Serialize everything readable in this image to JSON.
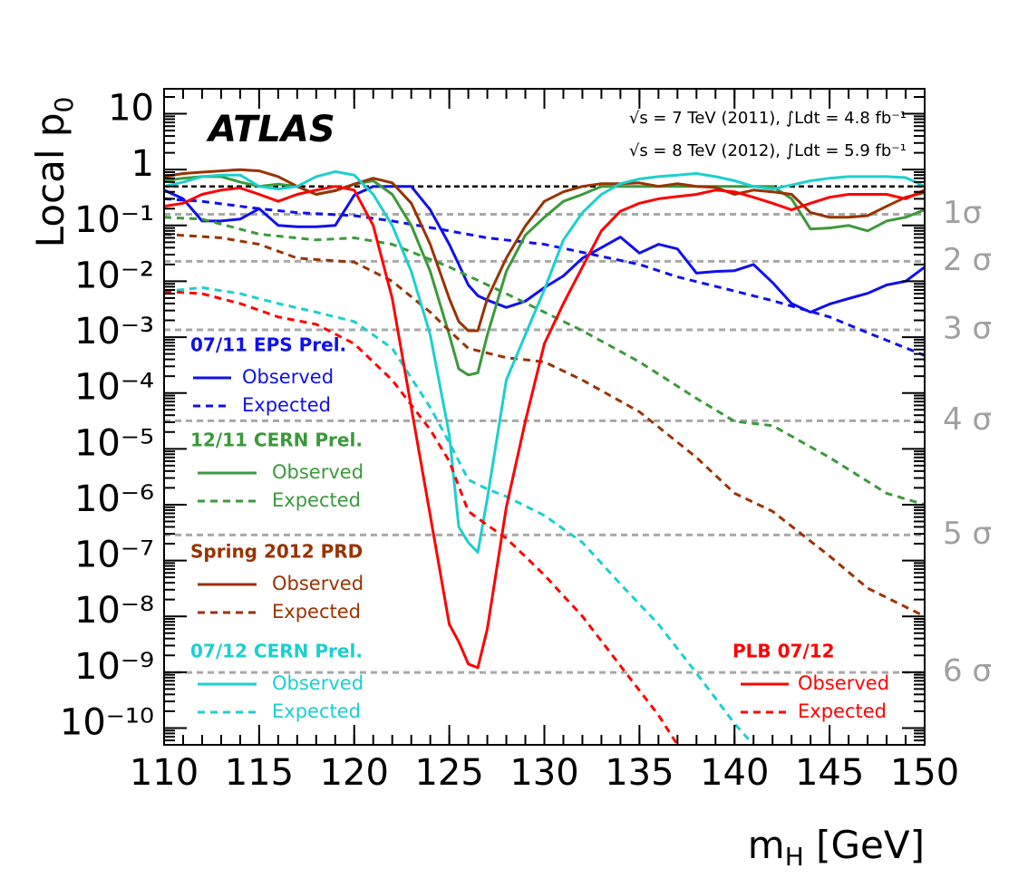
{
  "chart_data": {
    "type": "line",
    "title": "ATLAS",
    "annotations": [
      "√s = 7 TeV (2011),  ∫Ldt = 4.8 fb⁻¹",
      "√s = 8 TeV (2012),  ∫Ldt = 5.9 fb⁻¹"
    ],
    "ylabel": {
      "main": "Local p",
      "sub": "0"
    },
    "xlabel": {
      "main": "m",
      "sub": "H",
      "unit": " [GeV]"
    },
    "log_y": true,
    "xlim": [
      110,
      150
    ],
    "xticks": [
      110,
      115,
      120,
      125,
      130,
      135,
      140,
      145,
      150
    ],
    "ylim": [
      5e-11,
      28
    ],
    "yticks": [
      10,
      1,
      {
        "value": 0.1,
        "label": "10⁻¹"
      },
      {
        "value": 0.01,
        "label": "10⁻²"
      },
      {
        "value": 0.001,
        "label": "10⁻³"
      },
      {
        "value": 0.0001,
        "label": "10⁻⁴"
      },
      {
        "value": 1e-05,
        "label": "10⁻⁵"
      },
      {
        "value": 1e-06,
        "label": "10⁻⁶"
      },
      {
        "value": 1e-07,
        "label": "10⁻⁷"
      },
      {
        "value": 1e-08,
        "label": "10⁻⁸"
      },
      {
        "value": 1e-09,
        "label": "10⁻⁹"
      },
      {
        "value": 1e-10,
        "label": "10⁻¹⁰"
      }
    ],
    "reference_line": 0.5,
    "sigma_lines": [
      {
        "value": 0.1587,
        "label": "1σ"
      },
      {
        "value": 0.02275,
        "label": "2 σ"
      },
      {
        "value": 0.00135,
        "label": "3 σ"
      },
      {
        "value": 3.17e-05,
        "label": "4 σ"
      },
      {
        "value": 2.87e-07,
        "label": "5 σ"
      },
      {
        "value": 9.87e-10,
        "label": "6 σ"
      }
    ],
    "legend_titles": [
      "07/11 EPS Prel.",
      "12/11 CERN Prel.",
      "Spring 2012 PRD",
      "07/12 CERN Prel.",
      "PLB 07/12"
    ],
    "series": [
      {
        "name": "Observed",
        "color": "#1010ee",
        "style": "solid",
        "x": [
          110,
          111,
          112,
          113,
          114,
          115,
          116,
          117,
          118,
          119,
          120,
          121,
          122,
          123,
          124,
          125,
          125.5,
          126,
          126.5,
          127,
          128,
          129,
          130,
          131,
          132,
          133,
          134,
          135,
          136,
          137,
          138,
          139,
          140,
          141,
          142,
          143,
          144,
          145,
          146,
          147,
          148,
          149,
          150
        ],
        "values": [
          0.43,
          0.3,
          0.12,
          0.12,
          0.13,
          0.2,
          0.1,
          0.095,
          0.095,
          0.1,
          0.35,
          0.5,
          0.5,
          0.5,
          0.19,
          0.046,
          0.02,
          0.0086,
          0.0055,
          0.0046,
          0.0034,
          0.0044,
          0.0077,
          0.0125,
          0.026,
          0.04,
          0.062,
          0.032,
          0.046,
          0.038,
          0.014,
          0.015,
          0.0155,
          0.02,
          0.0095,
          0.004,
          0.0028,
          0.0039,
          0.0049,
          0.0061,
          0.0086,
          0.01,
          0.018
        ]
      },
      {
        "name": "Expected",
        "color": "#1010ee",
        "style": "dashed",
        "x": [
          110,
          112,
          115,
          117,
          120,
          122,
          125,
          127,
          130,
          132,
          135,
          137,
          140,
          142,
          145,
          147,
          150
        ],
        "values": [
          0.3,
          0.27,
          0.2,
          0.17,
          0.15,
          0.12,
          0.08,
          0.06,
          0.046,
          0.033,
          0.02,
          0.012,
          0.0067,
          0.0045,
          0.0023,
          0.0012,
          0.00047
        ]
      },
      {
        "name": "Observed",
        "color": "#3a9a3a",
        "style": "solid",
        "x": [
          110,
          111,
          112,
          113,
          114,
          115,
          116,
          117,
          118,
          119,
          120,
          121,
          122,
          123,
          124,
          125,
          125.5,
          126,
          126.5,
          127,
          128,
          129,
          130,
          131,
          132,
          133,
          134,
          135,
          136,
          137,
          138,
          139,
          140,
          141,
          142,
          143,
          144,
          145,
          146,
          147,
          148,
          149,
          150
        ],
        "values": [
          0.63,
          0.7,
          0.75,
          0.75,
          0.6,
          0.5,
          0.55,
          0.5,
          0.36,
          0.42,
          0.55,
          0.63,
          0.36,
          0.1,
          0.015,
          0.0011,
          0.00027,
          0.00021,
          0.00023,
          0.0011,
          0.015,
          0.067,
          0.14,
          0.27,
          0.36,
          0.5,
          0.5,
          0.5,
          0.5,
          0.5,
          0.5,
          0.5,
          0.5,
          0.5,
          0.5,
          0.3,
          0.086,
          0.09,
          0.1,
          0.08,
          0.12,
          0.14,
          0.19
        ]
      },
      {
        "name": "Expected",
        "color": "#3a9a3a",
        "style": "dashed",
        "x": [
          110,
          112,
          115,
          118,
          120,
          122,
          125,
          128,
          130,
          132,
          135,
          138,
          140,
          142,
          145,
          148,
          150
        ],
        "values": [
          0.14,
          0.13,
          0.07,
          0.055,
          0.06,
          0.046,
          0.018,
          0.006,
          0.0028,
          0.0013,
          0.00036,
          8e-05,
          3.1e-05,
          2.6e-05,
          7e-06,
          1.6e-06,
          1e-06
        ]
      },
      {
        "name": "Observed",
        "color": "#993300",
        "style": "solid",
        "x": [
          110,
          111,
          112,
          113,
          114,
          115,
          116,
          117,
          118,
          119,
          120,
          121,
          122,
          123,
          124,
          125,
          125.5,
          126,
          126.5,
          127,
          128,
          129,
          130,
          131,
          132,
          133,
          134,
          135,
          136,
          137,
          138,
          139,
          140,
          141,
          142,
          143,
          144,
          145,
          146,
          147,
          148,
          149,
          150
        ],
        "values": [
          0.75,
          0.85,
          0.9,
          0.95,
          1.0,
          0.95,
          0.75,
          0.5,
          0.36,
          0.42,
          0.55,
          0.7,
          0.58,
          0.25,
          0.046,
          0.0049,
          0.0019,
          0.0013,
          0.0013,
          0.0049,
          0.026,
          0.098,
          0.27,
          0.4,
          0.5,
          0.56,
          0.56,
          0.58,
          0.5,
          0.56,
          0.5,
          0.48,
          0.36,
          0.43,
          0.4,
          0.36,
          0.17,
          0.14,
          0.14,
          0.15,
          0.22,
          0.32,
          0.39
        ]
      },
      {
        "name": "Expected",
        "color": "#993300",
        "style": "dashed",
        "x": [
          110,
          113,
          115,
          117,
          120,
          122,
          124,
          125,
          126,
          128,
          130,
          132,
          135,
          138,
          140,
          142,
          145,
          147,
          150
        ],
        "values": [
          0.07,
          0.06,
          0.046,
          0.026,
          0.022,
          0.01,
          0.0028,
          0.0013,
          0.00063,
          0.00043,
          0.00036,
          0.00017,
          4.6e-05,
          7e-06,
          1.6e-06,
          7.6e-07,
          1.2e-07,
          3.2e-08,
          1e-08
        ]
      },
      {
        "name": "Observed",
        "color": "#1ccfcf",
        "style": "solid",
        "x": [
          110,
          111,
          112,
          113,
          114,
          115,
          116,
          117,
          118,
          119,
          120,
          121,
          122,
          123,
          124,
          125,
          125.5,
          126,
          126.5,
          127,
          128,
          129,
          130,
          131,
          132,
          133,
          134,
          135,
          136,
          137,
          138,
          139,
          140,
          141,
          142,
          143,
          144,
          145,
          146,
          147,
          148,
          149,
          150
        ],
        "values": [
          0.5,
          0.6,
          0.75,
          0.8,
          0.8,
          0.5,
          0.45,
          0.5,
          0.75,
          0.92,
          0.8,
          0.36,
          0.1,
          0.015,
          0.0011,
          1.8e-05,
          4e-07,
          2.1e-07,
          1.4e-07,
          1.3e-06,
          0.00017,
          0.0011,
          0.0071,
          0.055,
          0.17,
          0.36,
          0.56,
          0.68,
          0.75,
          0.8,
          0.85,
          0.75,
          0.63,
          0.5,
          0.45,
          0.53,
          0.63,
          0.7,
          0.75,
          0.75,
          0.75,
          0.72,
          0.5
        ]
      },
      {
        "name": "Expected",
        "color": "#1ccfcf",
        "style": "dashed",
        "x": [
          110,
          112,
          114,
          116,
          118,
          120,
          122,
          124,
          125,
          126,
          127,
          128,
          130,
          132,
          134,
          136,
          138,
          140,
          141
        ],
        "values": [
          0.0066,
          0.0077,
          0.006,
          0.004,
          0.0028,
          0.0019,
          0.00063,
          5.5e-05,
          1.3e-05,
          2.8e-06,
          1.9e-06,
          1.4e-06,
          6.4e-07,
          2.1e-07,
          3.8e-08,
          7.2e-09,
          9.6e-10,
          1.2e-10,
          5e-11
        ]
      },
      {
        "name": "Observed",
        "color": "#ff0000",
        "style": "solid",
        "x": [
          110,
          111,
          112,
          113,
          114,
          115,
          116,
          117,
          118,
          119,
          120,
          121,
          122,
          123,
          124,
          125,
          125.5,
          126,
          126.5,
          127,
          128,
          129,
          130,
          131,
          132,
          133,
          134,
          135,
          136,
          137,
          138,
          139,
          140,
          141,
          142,
          143,
          144,
          145,
          146,
          147,
          148,
          149,
          150
        ],
        "values": [
          0.22,
          0.25,
          0.36,
          0.43,
          0.47,
          0.36,
          0.27,
          0.36,
          0.43,
          0.5,
          0.43,
          0.1,
          0.0049,
          5.5e-05,
          6.4e-07,
          7.2e-09,
          3.5e-09,
          1.4e-09,
          1.2e-09,
          6e-09,
          9e-07,
          3.1e-05,
          0.00076,
          0.004,
          0.018,
          0.08,
          0.18,
          0.25,
          0.3,
          0.33,
          0.36,
          0.43,
          0.4,
          0.32,
          0.25,
          0.19,
          0.25,
          0.32,
          0.36,
          0.36,
          0.36,
          0.3,
          0.43
        ]
      },
      {
        "name": "Expected",
        "color": "#ff0000",
        "style": "dashed",
        "x": [
          110,
          112,
          114,
          116,
          118,
          120,
          122,
          124,
          125,
          126,
          127,
          128,
          130,
          132,
          134,
          136,
          137
        ],
        "values": [
          0.0066,
          0.006,
          0.004,
          0.0023,
          0.0017,
          0.00076,
          0.00017,
          2.2e-05,
          6e-06,
          7.6e-07,
          4.3e-07,
          2.5e-07,
          5.5e-08,
          1e-08,
          1.3e-09,
          1.7e-10,
          5e-11
        ]
      }
    ]
  }
}
